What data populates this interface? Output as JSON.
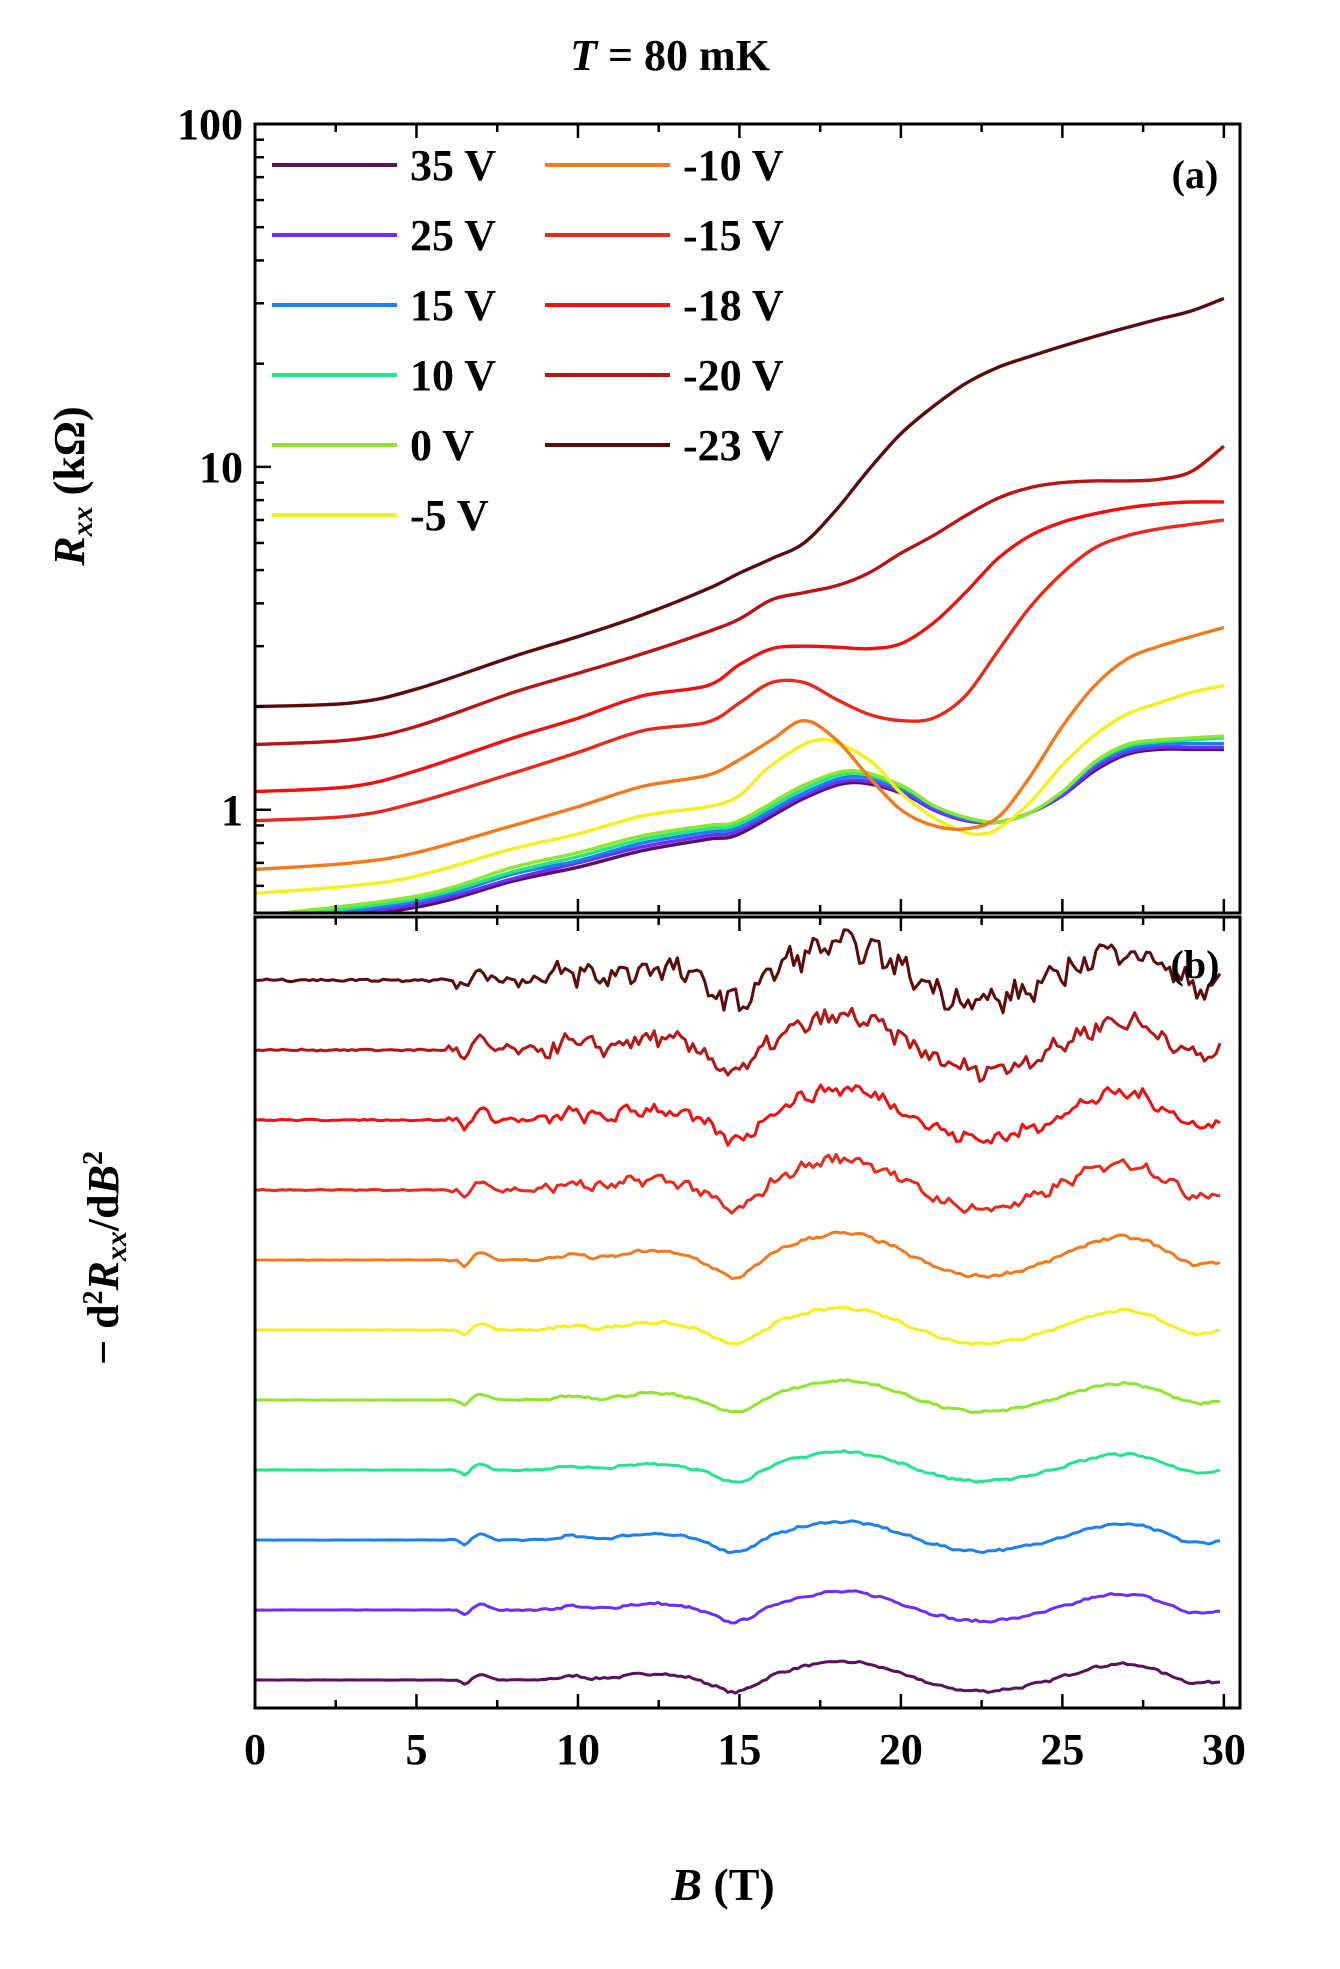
{
  "figure": {
    "title_var": "T",
    "title_rest": " =  80 mK"
  },
  "chart_data": [
    {
      "panel": "(a)",
      "type": "line",
      "x_axis_label": {
        "var": "B",
        "unit": " (T)"
      },
      "y_axis_label": {
        "var": "R",
        "sub": "xx",
        "unit": " (kΩ)"
      },
      "xlim": [
        0,
        30.5
      ],
      "ylim": [
        0.5,
        100
      ],
      "yscale": "log",
      "x_ticks": [
        0,
        5,
        10,
        15,
        20,
        25,
        30
      ],
      "y_tick_labels": [
        "1",
        "10",
        "100"
      ],
      "legend_placement": "top-left, two columns",
      "series": [
        {
          "name": "35 V",
          "color": "#5b0f5e",
          "x": [
            0,
            5,
            8,
            10,
            12,
            14,
            15,
            17,
            18.5,
            20,
            21,
            22,
            23,
            24,
            25,
            26,
            27,
            28,
            29,
            30
          ],
          "y": [
            0.45,
            0.52,
            0.62,
            0.68,
            0.76,
            0.82,
            0.85,
            1.08,
            1.2,
            1.12,
            1.0,
            0.93,
            0.92,
            0.98,
            1.1,
            1.3,
            1.45,
            1.5,
            1.5,
            1.5
          ]
        },
        {
          "name": "25 V",
          "color": "#6f2cff",
          "x": [
            0,
            5,
            8,
            10,
            12,
            14,
            15,
            17,
            18.5,
            20,
            21,
            22,
            23,
            24,
            25,
            26,
            27,
            28,
            29,
            30
          ],
          "y": [
            0.46,
            0.53,
            0.63,
            0.7,
            0.78,
            0.84,
            0.87,
            1.1,
            1.22,
            1.13,
            1.0,
            0.93,
            0.92,
            0.98,
            1.1,
            1.32,
            1.47,
            1.52,
            1.52,
            1.52
          ]
        },
        {
          "name": "15 V",
          "color": "#1a82ee",
          "x": [
            0,
            5,
            8,
            10,
            12,
            14,
            15,
            17,
            18.5,
            20,
            21,
            22,
            23,
            24,
            25,
            26,
            27,
            28,
            29,
            30
          ],
          "y": [
            0.47,
            0.54,
            0.65,
            0.71,
            0.8,
            0.86,
            0.89,
            1.12,
            1.25,
            1.15,
            1.02,
            0.94,
            0.92,
            0.98,
            1.12,
            1.35,
            1.5,
            1.55,
            1.56,
            1.56
          ]
        },
        {
          "name": "10 V",
          "color": "#22e68a",
          "x": [
            0,
            5,
            8,
            10,
            12,
            14,
            15,
            17,
            18.5,
            20,
            21,
            22,
            23,
            24,
            25,
            26,
            27,
            28,
            29,
            30
          ],
          "y": [
            0.48,
            0.55,
            0.66,
            0.73,
            0.82,
            0.88,
            0.91,
            1.15,
            1.28,
            1.17,
            1.03,
            0.95,
            0.92,
            0.98,
            1.13,
            1.37,
            1.53,
            1.58,
            1.6,
            1.62
          ]
        },
        {
          "name": "0 V",
          "color": "#8ee62a",
          "x": [
            0,
            5,
            8,
            10,
            12,
            14,
            15,
            17,
            18.5,
            20,
            21,
            22,
            23,
            24,
            25,
            26,
            27,
            28,
            29,
            30
          ],
          "y": [
            0.49,
            0.56,
            0.68,
            0.75,
            0.84,
            0.9,
            0.93,
            1.18,
            1.3,
            1.18,
            1.03,
            0.95,
            0.92,
            0.98,
            1.13,
            1.38,
            1.55,
            1.6,
            1.62,
            1.64
          ]
        },
        {
          "name": "-5 V",
          "color": "#f5ef1a",
          "x": [
            0,
            3,
            5,
            8,
            10,
            12,
            14,
            15,
            16,
            17.5,
            19,
            20,
            21,
            22,
            22.5,
            23,
            24,
            25,
            26,
            27,
            28,
            29,
            30
          ],
          "y": [
            0.57,
            0.6,
            0.64,
            0.77,
            0.85,
            0.96,
            1.02,
            1.1,
            1.35,
            1.6,
            1.4,
            1.12,
            0.95,
            0.86,
            0.85,
            0.88,
            1.05,
            1.35,
            1.65,
            1.9,
            2.05,
            2.2,
            2.3
          ]
        },
        {
          "name": "-10 V",
          "color": "#f07a1c",
          "x": [
            0,
            3,
            5,
            8,
            10,
            12,
            14,
            15,
            16,
            17,
            18,
            19,
            20,
            21,
            22,
            23,
            24,
            25,
            26,
            27,
            28,
            29,
            30
          ],
          "y": [
            0.67,
            0.7,
            0.75,
            0.9,
            1.02,
            1.17,
            1.26,
            1.4,
            1.6,
            1.82,
            1.6,
            1.25,
            1.0,
            0.9,
            0.88,
            0.95,
            1.25,
            1.75,
            2.3,
            2.75,
            3.0,
            3.2,
            3.4
          ]
        },
        {
          "name": "-15 V",
          "color": "#e82a1a",
          "x": [
            0,
            3,
            5,
            8,
            10,
            12,
            14,
            15,
            16,
            17,
            18,
            19,
            20,
            21,
            22,
            23,
            24,
            25,
            26,
            27,
            28,
            29,
            30
          ],
          "y": [
            0.93,
            0.96,
            1.05,
            1.28,
            1.47,
            1.7,
            1.8,
            2.05,
            2.35,
            2.35,
            2.1,
            1.9,
            1.82,
            1.85,
            2.15,
            2.9,
            3.9,
            4.9,
            5.8,
            6.3,
            6.6,
            6.8,
            7.0
          ]
        },
        {
          "name": "-18 V",
          "color": "#f01010",
          "x": [
            0,
            3,
            5,
            8,
            10,
            12,
            14,
            15,
            16,
            17,
            18,
            19,
            20,
            21,
            22,
            23,
            24,
            25,
            26,
            27,
            28,
            29,
            30
          ],
          "y": [
            1.13,
            1.17,
            1.3,
            1.62,
            1.85,
            2.15,
            2.3,
            2.65,
            2.95,
            3.0,
            2.98,
            2.95,
            3.05,
            3.5,
            4.3,
            5.4,
            6.3,
            6.9,
            7.3,
            7.6,
            7.8,
            7.9,
            7.9
          ]
        },
        {
          "name": "-20 V",
          "color": "#b81414",
          "x": [
            0,
            3,
            5,
            8,
            10,
            12,
            14,
            15,
            16,
            17,
            18,
            19,
            20,
            21,
            22,
            23,
            24,
            25,
            26,
            27,
            28,
            29,
            30
          ],
          "y": [
            1.55,
            1.6,
            1.75,
            2.2,
            2.5,
            2.85,
            3.3,
            3.6,
            4.1,
            4.3,
            4.5,
            4.9,
            5.6,
            6.3,
            7.2,
            8.1,
            8.7,
            9.0,
            9.1,
            9.1,
            9.2,
            9.7,
            11.5
          ]
        },
        {
          "name": "-23 V",
          "color": "#5e0a0a",
          "x": [
            0,
            3,
            5,
            8,
            10,
            12,
            14,
            15,
            16,
            17,
            18,
            19,
            20,
            21,
            22,
            23,
            24,
            25,
            26,
            27,
            28,
            29,
            30
          ],
          "y": [
            2.0,
            2.05,
            2.25,
            2.8,
            3.2,
            3.7,
            4.4,
            4.9,
            5.4,
            6.0,
            7.5,
            9.8,
            12.5,
            15.0,
            17.5,
            19.5,
            21.0,
            22.5,
            24.0,
            25.5,
            27.0,
            28.5,
            31.0
          ]
        }
      ]
    },
    {
      "panel": "(b)",
      "type": "line",
      "x_axis_label": {
        "var": "B",
        "unit": " (T)"
      },
      "y_axis_label": "- d²Rxx/dB²",
      "xlim": [
        0,
        30.5
      ],
      "x_ticks": [
        0,
        5,
        10,
        15,
        20,
        25,
        30
      ],
      "x_tick_labels": [
        "0",
        "5",
        "10",
        "15",
        "20",
        "25",
        "30"
      ],
      "units": "arbitrary, curves vertically offset",
      "series": [
        {
          "name": "35 V",
          "color": "#5b0f5e",
          "offset": 0,
          "amp": 1.0,
          "noise": 0.3
        },
        {
          "name": "25 V",
          "color": "#6f2cff",
          "offset": 1,
          "amp": 1.0,
          "noise": 0.3
        },
        {
          "name": "15 V",
          "color": "#1a82ee",
          "offset": 2,
          "amp": 1.0,
          "noise": 0.3
        },
        {
          "name": "10 V",
          "color": "#22e68a",
          "offset": 3,
          "amp": 1.0,
          "noise": 0.3
        },
        {
          "name": "0 V",
          "color": "#8ee62a",
          "offset": 4,
          "amp": 1.05,
          "noise": 0.3
        },
        {
          "name": "-5 V",
          "color": "#f5ef1a",
          "offset": 5,
          "amp": 1.2,
          "noise": 0.35
        },
        {
          "name": "-10 V",
          "color": "#f07a1c",
          "offset": 6,
          "amp": 1.45,
          "noise": 0.4
        },
        {
          "name": "-15 V",
          "color": "#e82a1a",
          "offset": 7,
          "amp": 1.7,
          "noise": 1.3
        },
        {
          "name": "-18 V",
          "color": "#f01010",
          "offset": 8,
          "amp": 1.7,
          "noise": 1.6
        },
        {
          "name": "-20 V",
          "color": "#b81414",
          "offset": 9,
          "amp": 1.8,
          "noise": 2.2
        },
        {
          "name": "-23 V",
          "color": "#5e0a0a",
          "offset": 10,
          "amp": 1.9,
          "noise": 3.2
        }
      ]
    }
  ]
}
